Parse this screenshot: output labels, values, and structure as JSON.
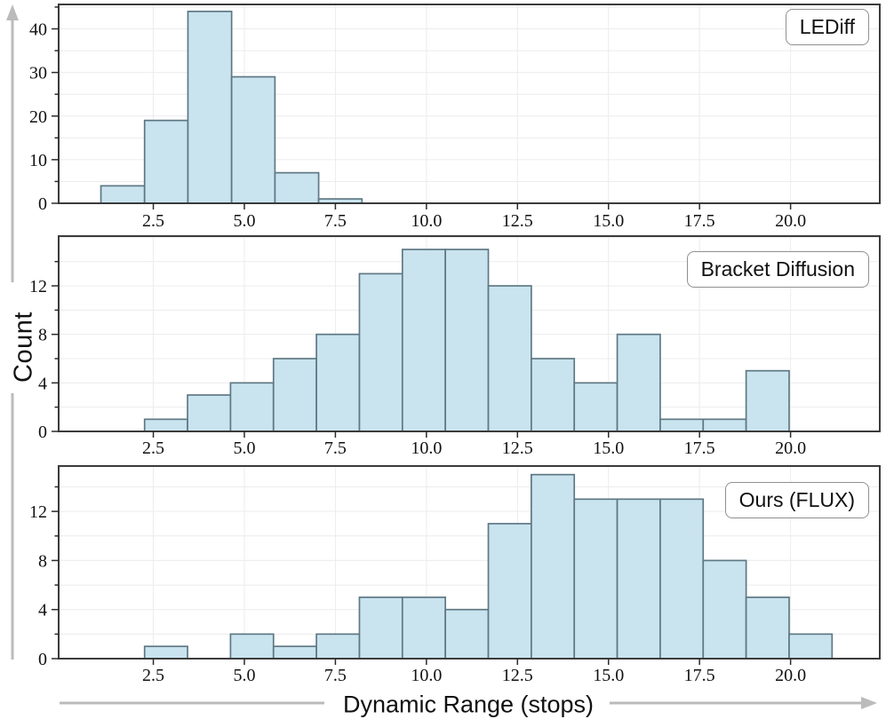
{
  "figure": {
    "colors": {
      "bar_fill": "#c9e4ef",
      "bar_edge": "#5f7884",
      "grid": "#ececec",
      "panel_border": "#3b3b3b",
      "tick": "#2b2b2b",
      "text": "#111111",
      "arrow": "#bbbbbb"
    }
  },
  "chart_data": {
    "type": "bar",
    "subtype": "histogram-grid",
    "xlabel": "Dynamic Range (stops)",
    "ylabel": "Count",
    "xlim": [
      -0.1,
      22.45
    ],
    "xticks": [
      2.5,
      5,
      7.5,
      10,
      12.5,
      15,
      17.5,
      20
    ],
    "xtick_labels": [
      "2.5",
      "5.0",
      "7.5",
      "10.0",
      "12.5",
      "15.0",
      "17.5",
      "20.0"
    ],
    "grid": "on",
    "legend_position": "upper-right-inside",
    "panels": [
      {
        "label": "LEDiff",
        "bin_edges": [
          1.06,
          2.26,
          3.45,
          4.65,
          5.84,
          7.04,
          8.23
        ],
        "counts": [
          4,
          19,
          44,
          29,
          7,
          1
        ],
        "ylim": [
          0,
          45.6
        ],
        "yticks": [
          0,
          10,
          20,
          30,
          40
        ],
        "ytick_labels": [
          "0",
          "10",
          "20",
          "30",
          "40"
        ],
        "grid_step": 5,
        "minor_step": 5
      },
      {
        "label": "Bracket Diffusion",
        "bin_edges": [
          2.26,
          3.44,
          4.62,
          5.8,
          6.98,
          8.16,
          9.34,
          10.52,
          11.7,
          12.88,
          14.06,
          15.24,
          16.42,
          17.6,
          18.78,
          19.96
        ],
        "counts": [
          1,
          3,
          4,
          6,
          8,
          13,
          15,
          15,
          12,
          6,
          4,
          8,
          1,
          1,
          5
        ],
        "ylim": [
          0,
          16.1
        ],
        "yticks": [
          0,
          4,
          8,
          12
        ],
        "ytick_labels": [
          "0",
          "4",
          "8",
          "12"
        ],
        "grid_step": 2,
        "minor_step": 2
      },
      {
        "label": "Ours (FLUX)",
        "bin_edges": [
          2.26,
          3.44,
          4.62,
          5.8,
          6.98,
          8.16,
          9.34,
          10.52,
          11.7,
          12.88,
          14.06,
          15.24,
          16.42,
          17.6,
          18.78,
          19.96,
          21.14
        ],
        "counts": [
          1,
          0,
          2,
          1,
          2,
          5,
          5,
          4,
          11,
          15,
          13,
          13,
          13,
          8,
          5,
          2
        ],
        "ylim": [
          0,
          15.7
        ],
        "yticks": [
          0,
          4,
          8,
          12
        ],
        "ytick_labels": [
          "0",
          "4",
          "8",
          "12"
        ],
        "grid_step": 2,
        "minor_step": 2
      }
    ]
  }
}
